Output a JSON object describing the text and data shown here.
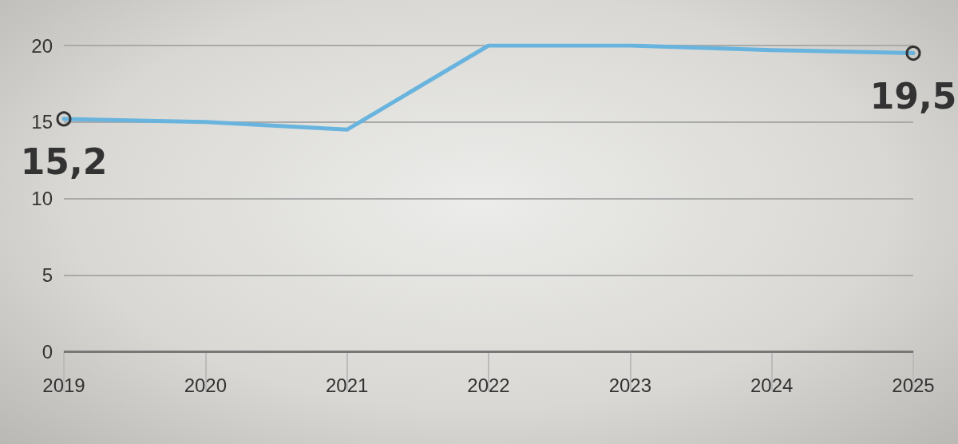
{
  "chart_data": {
    "type": "line",
    "categories": [
      "2019",
      "2020",
      "2021",
      "2022",
      "2023",
      "2024",
      "2025"
    ],
    "series": [
      {
        "color": "#68b4de",
        "values": [
          15.2,
          15.0,
          14.5,
          20,
          20,
          19.7,
          19.5
        ],
        "value_labels": [
          "15,2",
          null,
          null,
          null,
          null,
          null,
          "19,5"
        ]
      }
    ],
    "ylim": [
      0,
      20
    ],
    "yticks": [
      0,
      5,
      10,
      15,
      20
    ],
    "grid": "y",
    "line_style": "solid"
  }
}
